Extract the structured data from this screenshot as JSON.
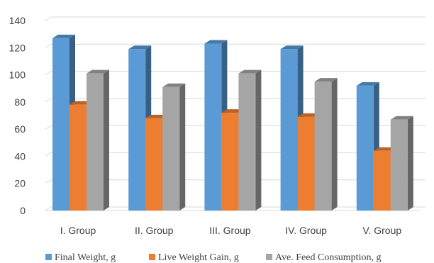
{
  "chart_data": {
    "type": "bar",
    "title": "",
    "xlabel": "",
    "ylabel": "",
    "categories": [
      "I. Group",
      "II. Group",
      "III. Group",
      "IV. Group",
      "V. Group"
    ],
    "series": [
      {
        "name": "Final Weight, g",
        "color": "#5B9BD5",
        "values": [
          127,
          119,
          123,
          119,
          92
        ]
      },
      {
        "name": "Live Weight Gain, g",
        "color": "#ED7D31",
        "values": [
          78,
          68,
          72,
          69,
          44
        ]
      },
      {
        "name": "Ave. Feed Consumption, g",
        "color": "#A5A5A5",
        "values": [
          101,
          91,
          101,
          95,
          67
        ]
      }
    ],
    "ylim": [
      0,
      140
    ],
    "yticks": [
      0,
      20,
      40,
      60,
      80,
      100,
      120,
      140
    ],
    "grid": true,
    "legend_position": "bottom"
  }
}
